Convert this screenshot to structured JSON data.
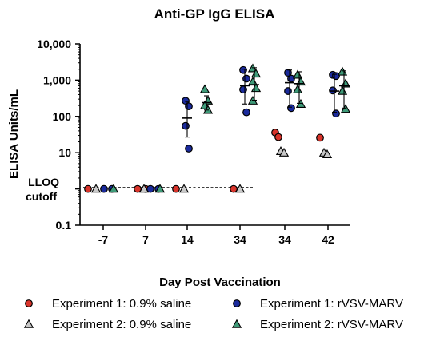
{
  "chart_data": {
    "type": "scatter",
    "title": "Anti-GP IgG ELISA",
    "xlabel": "Day Post Vaccination",
    "ylabel": "ELISA Units/mL",
    "yscale": "log",
    "ylim": [
      0.1,
      10000
    ],
    "y_ticks": [
      {
        "value": 10000,
        "label": "10,000"
      },
      {
        "value": 1000,
        "label": "1,000"
      },
      {
        "value": 100,
        "label": "100"
      },
      {
        "value": 10,
        "label": "10"
      },
      {
        "value": 0.1,
        "label": "0.1"
      }
    ],
    "lloq": {
      "value": 1,
      "label_line1": "LLOQ",
      "label_line2": "cutoff",
      "style": "dashed"
    },
    "categories": [
      "-7",
      "7",
      "14",
      "34",
      "34",
      "42"
    ],
    "legend_position": "bottom",
    "series": [
      {
        "name": "Experiment 1: 0.9% saline",
        "marker": "circle",
        "color": "#d9342b",
        "points": [
          {
            "category": 0,
            "values": [
              1
            ]
          },
          {
            "category": 1,
            "values": [
              1,
              1
            ]
          },
          {
            "category": 2,
            "values": [
              1
            ]
          },
          {
            "category": 3,
            "values": [
              1
            ]
          },
          {
            "category": 4,
            "values": [
              36,
              27
            ]
          },
          {
            "category": 5,
            "values": [
              26
            ]
          }
        ]
      },
      {
        "name": "Experiment 2: 0.9% saline",
        "marker": "triangle",
        "color": "#c8c8c8",
        "points": [
          {
            "category": 0,
            "values": [
              1
            ]
          },
          {
            "category": 1,
            "values": [
              1
            ]
          },
          {
            "category": 2,
            "values": [
              1
            ]
          },
          {
            "category": 3,
            "values": [
              1
            ]
          },
          {
            "category": 4,
            "values": [
              11,
              10
            ]
          },
          {
            "category": 5,
            "values": [
              10,
              9
            ]
          }
        ]
      },
      {
        "name": "Experiment 1: rVSV-MARV",
        "marker": "circle",
        "color": "#1a2a9c",
        "points": [
          {
            "category": 0,
            "values": [
              1,
              1
            ]
          },
          {
            "category": 1,
            "values": [
              1,
              1
            ]
          },
          {
            "category": 2,
            "values": [
              270,
              190,
              55,
              13
            ],
            "mean": 90,
            "err": [
              27,
              260
            ]
          },
          {
            "category": 3,
            "values": [
              1900,
              1100,
              550,
              130
            ],
            "mean": 700,
            "err": [
              220,
              2000
            ]
          },
          {
            "category": 4,
            "values": [
              1600,
              1100,
              500,
              170
            ],
            "mean": 850,
            "err": [
              180,
              1900
            ]
          },
          {
            "category": 5,
            "values": [
              1400,
              1300,
              520,
              120
            ],
            "mean": 500,
            "err": [
              130,
              1450
            ]
          }
        ]
      },
      {
        "name": "Experiment 2: rVSV-MARV",
        "marker": "triangle",
        "color": "#3e9a78",
        "points": [
          {
            "category": 0,
            "values": [
              1
            ]
          },
          {
            "category": 1,
            "values": [
              1
            ]
          },
          {
            "category": 2,
            "values": [
              560,
              270,
              200,
              150
            ],
            "mean": 240,
            "err": [
              150,
              370
            ]
          },
          {
            "category": 3,
            "values": [
              2100,
              1500,
              900,
              600,
              270
            ],
            "mean": 750,
            "err": [
              280,
              2200
            ]
          },
          {
            "category": 4,
            "values": [
              1400,
              900,
              550,
              220
            ],
            "mean": 800,
            "err": [
              230,
              1700
            ]
          },
          {
            "category": 5,
            "values": [
              1700,
              800,
              500,
              160
            ],
            "mean": 700,
            "err": [
              170,
              1800
            ]
          }
        ]
      }
    ]
  }
}
